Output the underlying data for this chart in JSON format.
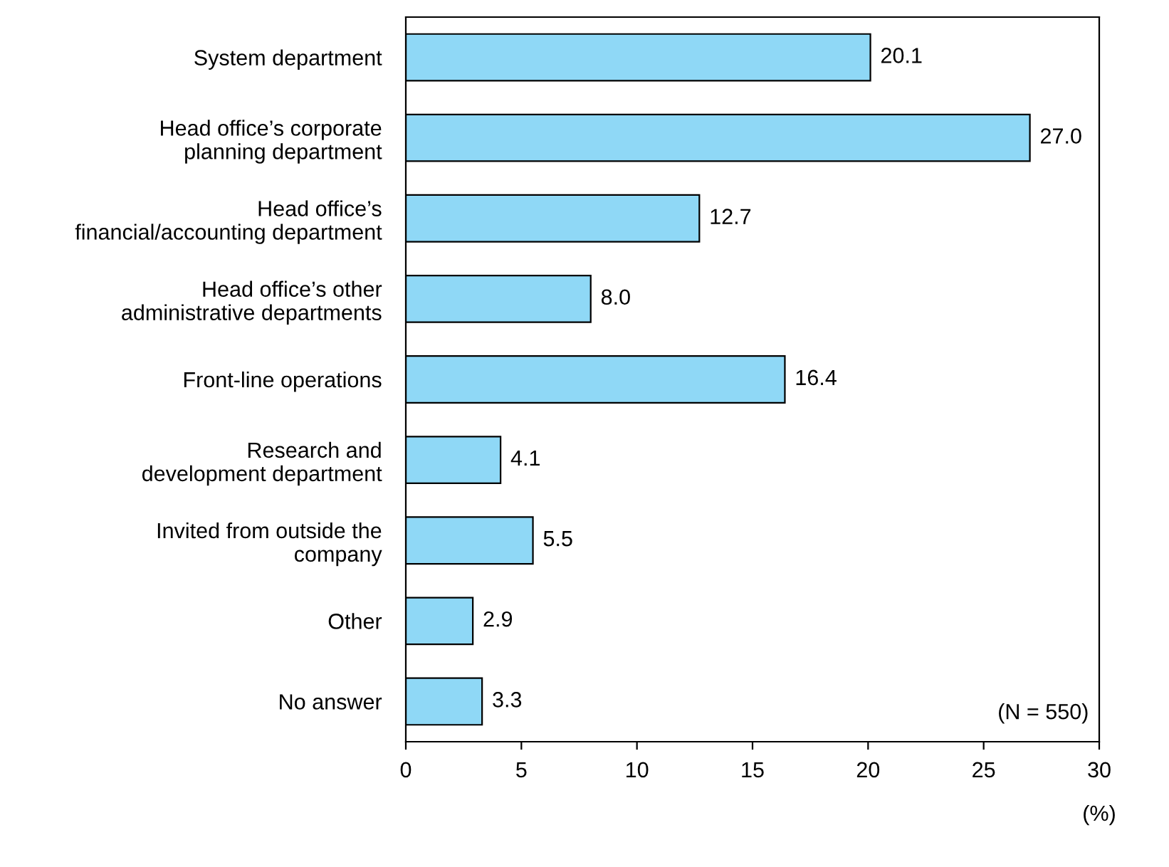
{
  "chart_data": {
    "type": "bar",
    "orientation": "horizontal",
    "categories": [
      "System department",
      "Head office’s corporate\nplanning department",
      "Head office’s\nfinancial/accounting department",
      "Head office’s other\nadministrative departments",
      "Front-line operations",
      "Research and\ndevelopment department",
      "Invited from outside the\ncompany",
      "Other",
      "No answer"
    ],
    "values": [
      20.1,
      27.0,
      12.7,
      8.0,
      16.4,
      4.1,
      5.5,
      2.9,
      3.3
    ],
    "value_labels": [
      "20.1",
      "27.0",
      "12.7",
      "8.0",
      "16.4",
      "4.1",
      "5.5",
      "2.9",
      "3.3"
    ],
    "color": "#8fd8f6",
    "xlim": [
      0,
      30
    ],
    "xticks": [
      0,
      5,
      10,
      15,
      20,
      25,
      30
    ],
    "xlabel": "(%)",
    "annotations": [
      "(N = 550)"
    ],
    "grid": false,
    "legend": false
  }
}
